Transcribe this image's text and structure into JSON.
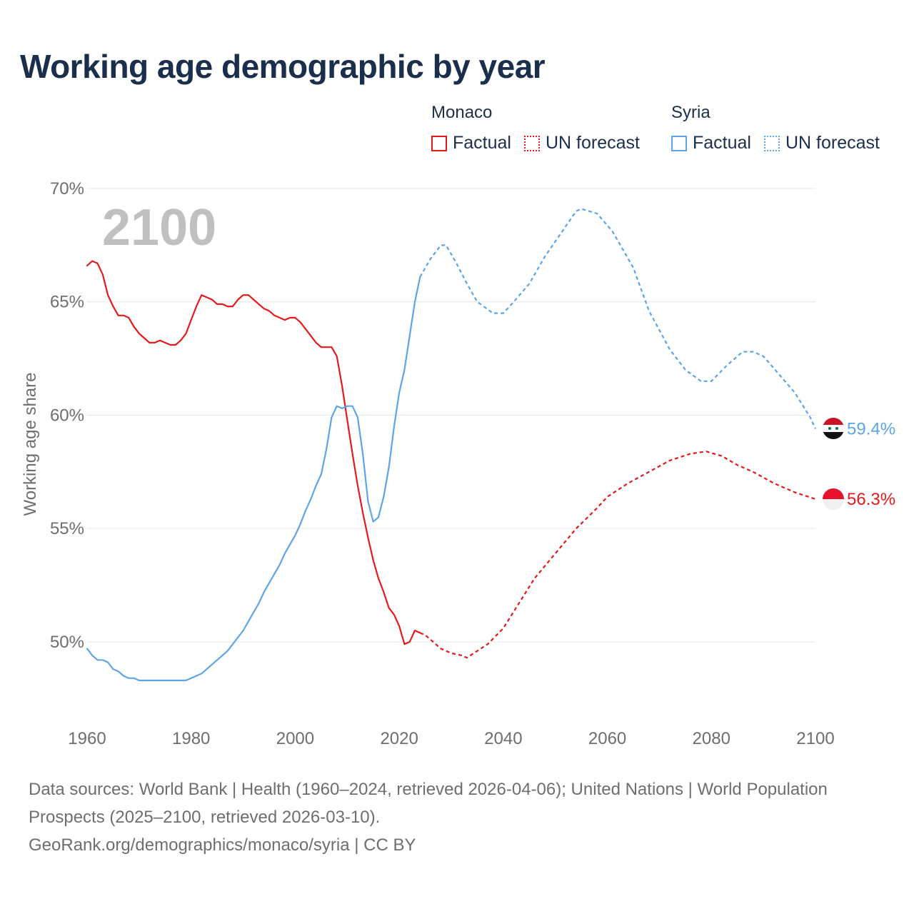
{
  "title": "Working age demographic by year",
  "legend": {
    "groups": [
      {
        "name": "Monaco",
        "color": "#e41a1c",
        "items": [
          "Factual",
          "UN forecast"
        ]
      },
      {
        "name": "Syria",
        "color": "#5da5e8",
        "items": [
          "Factual",
          "UN forecast"
        ]
      }
    ]
  },
  "year_label": "2100",
  "footer": {
    "sources": "Data sources: World Bank | Health (1960–2024, retrieved 2026-04-06); United Nations | World Population Prospects (2025–2100, retrieved 2026-03-10).",
    "credit": "GeoRank.org/demographics/monaco/syria | CC BY"
  },
  "chart_data": {
    "type": "line",
    "title": "Working age demographic by year",
    "xlabel": "",
    "ylabel": "Working age share",
    "xlim": [
      1960,
      2100
    ],
    "ylim": [
      46.5,
      70
    ],
    "x_ticks": [
      1960,
      1980,
      2000,
      2020,
      2040,
      2060,
      2080,
      2100
    ],
    "x_tick_labels": [
      "1960",
      "1980",
      "2000",
      "2020",
      "2040",
      "2060",
      "2080",
      "2100"
    ],
    "y_ticks": [
      50,
      55,
      60,
      65,
      70
    ],
    "y_tick_labels": [
      "50%",
      "55%",
      "60%",
      "65%",
      "70%"
    ],
    "grid": true,
    "series": [
      {
        "name": "Monaco",
        "segment": "Factual",
        "color": "#e41a1c",
        "style": "solid",
        "points": [
          [
            1960,
            66.6
          ],
          [
            1961,
            66.8
          ],
          [
            1962,
            66.7
          ],
          [
            1963,
            66.2
          ],
          [
            1964,
            65.3
          ],
          [
            1965,
            64.8
          ],
          [
            1966,
            64.4
          ],
          [
            1967,
            64.4
          ],
          [
            1968,
            64.3
          ],
          [
            1969,
            63.9
          ],
          [
            1970,
            63.6
          ],
          [
            1971,
            63.4
          ],
          [
            1972,
            63.2
          ],
          [
            1973,
            63.2
          ],
          [
            1974,
            63.3
          ],
          [
            1975,
            63.2
          ],
          [
            1976,
            63.1
          ],
          [
            1977,
            63.1
          ],
          [
            1978,
            63.3
          ],
          [
            1979,
            63.6
          ],
          [
            1980,
            64.2
          ],
          [
            1981,
            64.8
          ],
          [
            1982,
            65.3
          ],
          [
            1983,
            65.2
          ],
          [
            1984,
            65.1
          ],
          [
            1985,
            64.9
          ],
          [
            1986,
            64.9
          ],
          [
            1987,
            64.8
          ],
          [
            1988,
            64.8
          ],
          [
            1989,
            65.1
          ],
          [
            1990,
            65.3
          ],
          [
            1991,
            65.3
          ],
          [
            1992,
            65.1
          ],
          [
            1993,
            64.9
          ],
          [
            1994,
            64.7
          ],
          [
            1995,
            64.6
          ],
          [
            1996,
            64.4
          ],
          [
            1997,
            64.3
          ],
          [
            1998,
            64.2
          ],
          [
            1999,
            64.3
          ],
          [
            2000,
            64.3
          ],
          [
            2001,
            64.1
          ],
          [
            2002,
            63.8
          ],
          [
            2003,
            63.5
          ],
          [
            2004,
            63.2
          ],
          [
            2005,
            63.0
          ],
          [
            2006,
            63.0
          ],
          [
            2007,
            63.0
          ],
          [
            2008,
            62.6
          ],
          [
            2009,
            61.3
          ],
          [
            2010,
            59.8
          ],
          [
            2011,
            58.3
          ],
          [
            2012,
            56.9
          ],
          [
            2013,
            55.7
          ],
          [
            2014,
            54.6
          ],
          [
            2015,
            53.6
          ],
          [
            2016,
            52.8
          ],
          [
            2017,
            52.2
          ],
          [
            2018,
            51.5
          ],
          [
            2019,
            51.2
          ],
          [
            2020,
            50.7
          ],
          [
            2021,
            49.9
          ],
          [
            2022,
            50.0
          ],
          [
            2023,
            50.5
          ],
          [
            2024,
            50.4
          ]
        ]
      },
      {
        "name": "Monaco",
        "segment": "UN forecast",
        "color": "#e41a1c",
        "style": "dashed",
        "points": [
          [
            2024,
            50.4
          ],
          [
            2025,
            50.3
          ],
          [
            2026,
            50.1
          ],
          [
            2028,
            49.7
          ],
          [
            2030,
            49.5
          ],
          [
            2032,
            49.4
          ],
          [
            2033,
            49.3
          ],
          [
            2035,
            49.6
          ],
          [
            2037,
            49.9
          ],
          [
            2040,
            50.6
          ],
          [
            2043,
            51.7
          ],
          [
            2046,
            52.8
          ],
          [
            2050,
            53.9
          ],
          [
            2054,
            55.0
          ],
          [
            2058,
            55.9
          ],
          [
            2060,
            56.4
          ],
          [
            2064,
            57.0
          ],
          [
            2068,
            57.5
          ],
          [
            2072,
            58.0
          ],
          [
            2076,
            58.3
          ],
          [
            2079,
            58.4
          ],
          [
            2082,
            58.2
          ],
          [
            2085,
            57.8
          ],
          [
            2088,
            57.5
          ],
          [
            2092,
            57.0
          ],
          [
            2096,
            56.6
          ],
          [
            2100,
            56.3
          ]
        ]
      },
      {
        "name": "Syria",
        "segment": "Factual",
        "color": "#5da5e8",
        "style": "solid",
        "points": [
          [
            1960,
            49.7
          ],
          [
            1961,
            49.4
          ],
          [
            1962,
            49.2
          ],
          [
            1963,
            49.2
          ],
          [
            1964,
            49.1
          ],
          [
            1965,
            48.8
          ],
          [
            1966,
            48.7
          ],
          [
            1967,
            48.5
          ],
          [
            1968,
            48.4
          ],
          [
            1969,
            48.4
          ],
          [
            1970,
            48.3
          ],
          [
            1972,
            48.3
          ],
          [
            1974,
            48.3
          ],
          [
            1976,
            48.3
          ],
          [
            1978,
            48.3
          ],
          [
            1979,
            48.3
          ],
          [
            1980,
            48.4
          ],
          [
            1982,
            48.6
          ],
          [
            1984,
            49.0
          ],
          [
            1986,
            49.4
          ],
          [
            1987,
            49.6
          ],
          [
            1988,
            49.9
          ],
          [
            1989,
            50.2
          ],
          [
            1990,
            50.5
          ],
          [
            1991,
            50.9
          ],
          [
            1992,
            51.3
          ],
          [
            1993,
            51.7
          ],
          [
            1994,
            52.2
          ],
          [
            1995,
            52.6
          ],
          [
            1996,
            53.0
          ],
          [
            1997,
            53.4
          ],
          [
            1998,
            53.9
          ],
          [
            1999,
            54.3
          ],
          [
            2000,
            54.7
          ],
          [
            2001,
            55.2
          ],
          [
            2002,
            55.8
          ],
          [
            2003,
            56.3
          ],
          [
            2004,
            56.9
          ],
          [
            2005,
            57.4
          ],
          [
            2006,
            58.5
          ],
          [
            2007,
            59.9
          ],
          [
            2008,
            60.4
          ],
          [
            2009,
            60.3
          ],
          [
            2010,
            60.4
          ],
          [
            2011,
            60.4
          ],
          [
            2012,
            59.9
          ],
          [
            2013,
            58.3
          ],
          [
            2014,
            56.2
          ],
          [
            2015,
            55.3
          ],
          [
            2016,
            55.5
          ],
          [
            2017,
            56.4
          ],
          [
            2018,
            57.7
          ],
          [
            2019,
            59.5
          ],
          [
            2020,
            61.0
          ],
          [
            2021,
            62.0
          ],
          [
            2022,
            63.5
          ],
          [
            2023,
            65.0
          ],
          [
            2024,
            66.1
          ]
        ]
      },
      {
        "name": "Syria",
        "segment": "UN forecast",
        "color": "#5da5e8",
        "style": "dashed",
        "points": [
          [
            2024,
            66.1
          ],
          [
            2026,
            66.9
          ],
          [
            2028,
            67.5
          ],
          [
            2029,
            67.5
          ],
          [
            2031,
            66.7
          ],
          [
            2033,
            65.8
          ],
          [
            2035,
            65.0
          ],
          [
            2038,
            64.5
          ],
          [
            2040,
            64.5
          ],
          [
            2042,
            65.0
          ],
          [
            2045,
            65.8
          ],
          [
            2048,
            67.0
          ],
          [
            2051,
            68.0
          ],
          [
            2054,
            69.0
          ],
          [
            2055,
            69.1
          ],
          [
            2058,
            68.9
          ],
          [
            2061,
            68.1
          ],
          [
            2065,
            66.5
          ],
          [
            2068,
            64.6
          ],
          [
            2072,
            62.9
          ],
          [
            2075,
            62.0
          ],
          [
            2078,
            61.5
          ],
          [
            2080,
            61.5
          ],
          [
            2083,
            62.2
          ],
          [
            2086,
            62.8
          ],
          [
            2088,
            62.8
          ],
          [
            2090,
            62.6
          ],
          [
            2093,
            61.8
          ],
          [
            2096,
            61.0
          ],
          [
            2099,
            59.9
          ],
          [
            2100,
            59.4
          ]
        ]
      }
    ],
    "end_labels": [
      {
        "country": "Syria",
        "value": 59.4,
        "text": "59.4%",
        "color": "#5da5e8"
      },
      {
        "country": "Monaco",
        "value": 56.3,
        "text": "56.3%",
        "color": "#e41a1c"
      }
    ]
  }
}
